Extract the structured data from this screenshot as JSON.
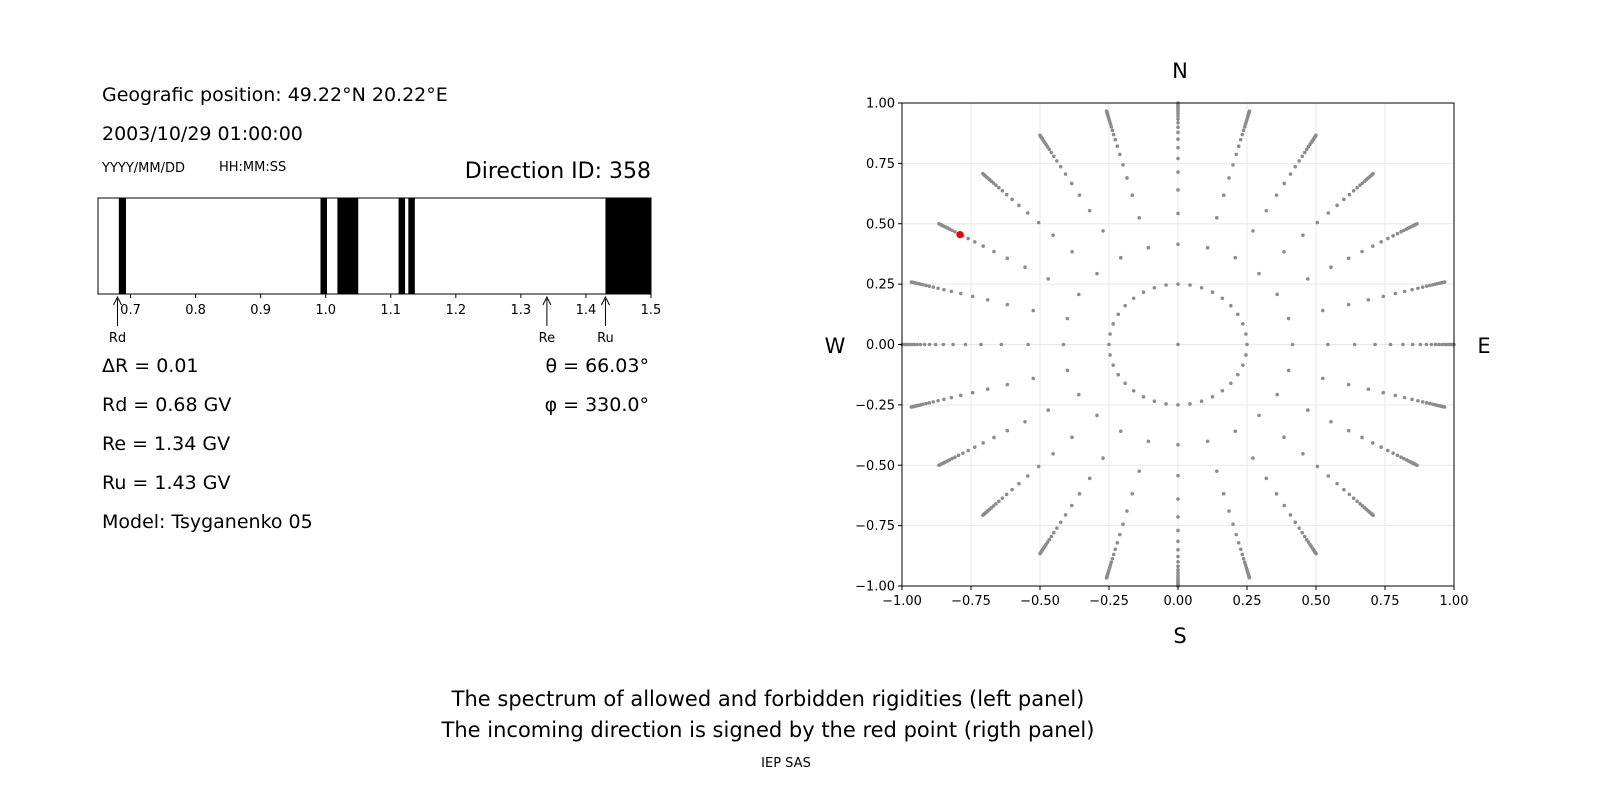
{
  "left_panel": {
    "position_label": "Geografic position:",
    "position_value": "49.22°N 20.22°E",
    "datetime": "2003/10/29 01:00:00",
    "date_format": "YYYY/MM/DD",
    "time_format": "HH:MM:SS",
    "direction_id_label": "Direction ID:",
    "direction_id": "358",
    "delta_r": "ΔR = 0.01",
    "rd": "Rd = 0.68 GV",
    "re": "Re = 1.34 GV",
    "ru": "Ru = 1.43 GV",
    "model": "Model: Tsyganenko 05",
    "theta": "θ = 66.03°",
    "phi": "φ = 330.0°"
  },
  "compass": {
    "n": "N",
    "s": "S",
    "w": "W",
    "e": "E"
  },
  "caption": {
    "line1": "The spectrum of allowed and forbidden rigidities (left panel)",
    "line2": "The incoming direction is signed by the red point (rigth panel)",
    "credit": "IEP SAS"
  },
  "chart_data": [
    {
      "type": "bar",
      "xlim": [
        0.65,
        1.5
      ],
      "xticks": [
        "0.7",
        "0.8",
        "0.9",
        "1.0",
        "1.1",
        "1.2",
        "1.3",
        "1.4",
        "1.5"
      ],
      "forbidden_bands": [
        [
          0.682,
          0.693
        ],
        [
          0.992,
          1.002
        ],
        [
          1.018,
          1.05
        ],
        [
          1.112,
          1.122
        ],
        [
          1.127,
          1.137
        ],
        [
          1.43,
          1.5
        ]
      ],
      "markers": [
        {
          "label": "Rd",
          "value": 0.68
        },
        {
          "label": "Re",
          "value": 1.34
        },
        {
          "label": "Ru",
          "value": 1.43
        }
      ],
      "colors": {
        "forbidden": "#000000",
        "allowed": "#ffffff"
      }
    },
    {
      "type": "scatter",
      "xlim": [
        -1.0,
        1.0
      ],
      "ylim": [
        -1.0,
        1.0
      ],
      "xticks": [
        "−1.00",
        "−0.75",
        "−0.50",
        "−0.25",
        "0.00",
        "0.25",
        "0.50",
        "0.75",
        "1.00"
      ],
      "yticks": [
        "−1.00",
        "−0.75",
        "−0.50",
        "−0.25",
        "0.00",
        "0.25",
        "0.50",
        "0.75",
        "1.00"
      ],
      "grid": true,
      "grid_radii": [
        0.25,
        0.415,
        0.543,
        0.64,
        0.714,
        0.77,
        0.815,
        0.85,
        0.878,
        0.9,
        0.918,
        0.933,
        0.945,
        0.956,
        0.965,
        0.973,
        0.98,
        0.986,
        0.991,
        0.996,
        1.0
      ],
      "grid_azimuths_deg": [
        0,
        15,
        30,
        45,
        60,
        75,
        90,
        105,
        120,
        135,
        150,
        165,
        180,
        195,
        210,
        225,
        240,
        255,
        270,
        285,
        300,
        315,
        330,
        345
      ],
      "inner_ring_points": 36,
      "highlight": {
        "x": -0.79,
        "y": 0.455
      },
      "colors": {
        "points": "#8c8c8c",
        "highlight": "#ee0000"
      }
    }
  ]
}
